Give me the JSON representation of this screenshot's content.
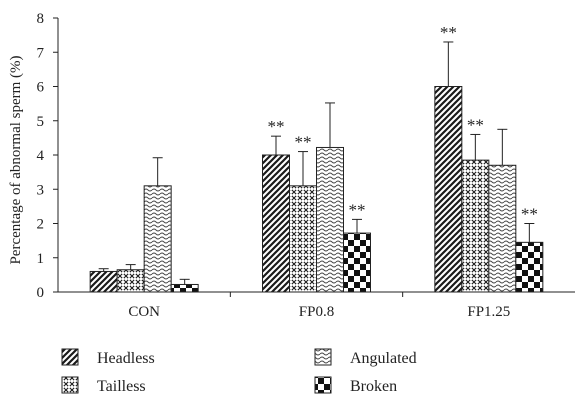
{
  "chart_data": {
    "type": "bar",
    "ylabel": "Percentage of abnormal sperm (%)",
    "xlabel": "",
    "title": "",
    "ylim": [
      0,
      8
    ],
    "yticks": [
      "0",
      "1",
      "2",
      "3",
      "4",
      "5",
      "6",
      "7",
      "8"
    ],
    "categories": [
      "CON",
      "FP0.8",
      "FP1.25"
    ],
    "grid": false,
    "legend_position": "bottom",
    "series": [
      {
        "name": "Headless",
        "pattern": "diagonal-stripes",
        "values": [
          0.6,
          4.0,
          6.0
        ],
        "errors": [
          0.08,
          0.55,
          1.3
        ],
        "significance": [
          "",
          "**",
          "**"
        ]
      },
      {
        "name": "Tailless",
        "pattern": "crosshatch",
        "values": [
          0.65,
          3.1,
          3.85
        ],
        "errors": [
          0.15,
          1.0,
          0.75
        ],
        "significance": [
          "",
          "**",
          "**"
        ]
      },
      {
        "name": "Angulated",
        "pattern": "wavy",
        "values": [
          3.1,
          4.22,
          3.7
        ],
        "errors": [
          0.82,
          1.3,
          1.05
        ],
        "significance": [
          "",
          "",
          ""
        ]
      },
      {
        "name": "Broken",
        "pattern": "checkerboard",
        "values": [
          0.22,
          1.72,
          1.45
        ],
        "errors": [
          0.15,
          0.4,
          0.55
        ],
        "significance": [
          "",
          "**",
          "**"
        ]
      }
    ]
  }
}
